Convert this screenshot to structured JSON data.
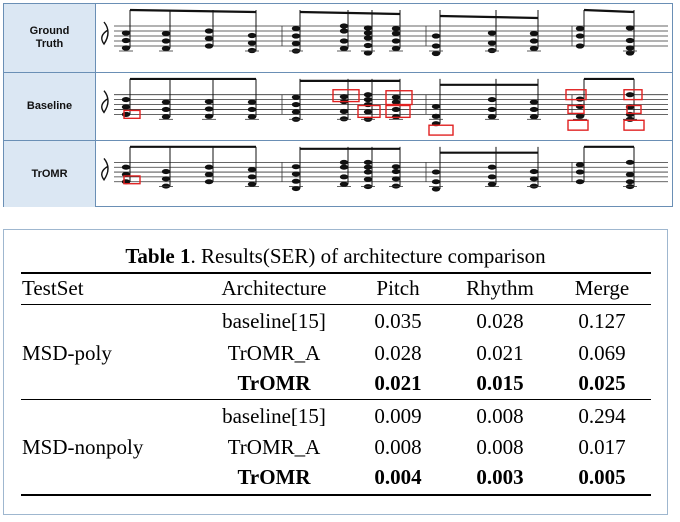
{
  "figure": {
    "rows": [
      {
        "label": "Ground\nTruth",
        "highlights": false
      },
      {
        "label": "Baseline",
        "highlights": true
      },
      {
        "label": "TrOMR",
        "highlights": true
      }
    ],
    "highlight_color": "#e02020",
    "border_color": "#6a8fb5",
    "label_background": "#dbe7f3"
  },
  "table": {
    "caption_bold": "Table 1",
    "caption_rest": ". Results(SER) of architecture comparison",
    "headers": {
      "testset": "TestSet",
      "architecture": "Architecture",
      "pitch": "Pitch",
      "rhythm": "Rhythm",
      "merge": "Merge"
    },
    "groups": [
      {
        "testset": "MSD-poly",
        "rows": [
          {
            "architecture": "baseline[15]",
            "pitch": "0.035",
            "rhythm": "0.028",
            "merge": "0.127",
            "bold": false
          },
          {
            "architecture": "TrOMR_A",
            "pitch": "0.028",
            "rhythm": "0.021",
            "merge": "0.069",
            "bold": false
          },
          {
            "architecture": "TrOMR",
            "pitch": "0.021",
            "rhythm": "0.015",
            "merge": "0.025",
            "bold": true
          }
        ]
      },
      {
        "testset": "MSD-nonpoly",
        "rows": [
          {
            "architecture": "baseline[15]",
            "pitch": "0.009",
            "rhythm": "0.008",
            "merge": "0.294",
            "bold": false
          },
          {
            "architecture": "TrOMR_A",
            "pitch": "0.008",
            "rhythm": "0.008",
            "merge": "0.017",
            "bold": false
          },
          {
            "architecture": "TrOMR",
            "pitch": "0.004",
            "rhythm": "0.003",
            "merge": "0.005",
            "bold": true
          }
        ]
      }
    ]
  }
}
